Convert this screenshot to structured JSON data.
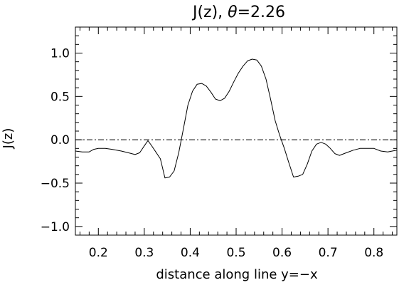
{
  "chart_data": {
    "type": "line",
    "title": {
      "prefix": "J(z),  ",
      "symbol": "θ",
      "suffix": "=2.26"
    },
    "xlabel": "distance along line y=−x",
    "ylabel": "J(z)",
    "xlim": [
      0.15,
      0.85
    ],
    "ylim": [
      -1.1,
      1.3
    ],
    "xticks": [
      0.2,
      0.3,
      0.4,
      0.5,
      0.6,
      0.7,
      0.8
    ],
    "xtick_labels": [
      "0.2",
      "0.3",
      "0.4",
      "0.5",
      "0.6",
      "0.7",
      "0.8"
    ],
    "yticks": [
      -1.0,
      -0.5,
      0.0,
      0.5,
      1.0
    ],
    "ytick_labels": [
      "−1.0",
      "−0.5",
      "0.0",
      "0.5",
      "1.0"
    ],
    "grid": false,
    "reference_line": {
      "y": 0,
      "style": "dash-dot"
    },
    "series": [
      {
        "x": [
          0.15,
          0.165,
          0.18,
          0.19,
          0.2,
          0.215,
          0.23,
          0.25,
          0.265,
          0.28,
          0.29,
          0.3,
          0.308,
          0.315,
          0.325,
          0.335,
          0.345,
          0.355,
          0.365,
          0.375,
          0.385,
          0.395,
          0.405,
          0.415,
          0.425,
          0.435,
          0.445,
          0.455,
          0.465,
          0.475,
          0.485,
          0.495,
          0.505,
          0.515,
          0.525,
          0.535,
          0.545,
          0.555,
          0.565,
          0.575,
          0.585,
          0.595,
          0.605,
          0.615,
          0.625,
          0.635,
          0.645,
          0.655,
          0.665,
          0.675,
          0.685,
          0.695,
          0.705,
          0.715,
          0.725,
          0.74,
          0.755,
          0.77,
          0.785,
          0.8,
          0.815,
          0.83,
          0.85
        ],
        "y": [
          -0.13,
          -0.14,
          -0.14,
          -0.11,
          -0.1,
          -0.1,
          -0.11,
          -0.13,
          -0.15,
          -0.17,
          -0.15,
          -0.07,
          -0.01,
          -0.06,
          -0.14,
          -0.22,
          -0.44,
          -0.43,
          -0.36,
          -0.15,
          0.12,
          0.4,
          0.56,
          0.64,
          0.65,
          0.62,
          0.55,
          0.47,
          0.45,
          0.48,
          0.56,
          0.67,
          0.77,
          0.85,
          0.91,
          0.93,
          0.92,
          0.85,
          0.7,
          0.47,
          0.22,
          0.05,
          -0.1,
          -0.27,
          -0.43,
          -0.42,
          -0.4,
          -0.28,
          -0.13,
          -0.05,
          -0.03,
          -0.05,
          -0.1,
          -0.16,
          -0.18,
          -0.15,
          -0.12,
          -0.1,
          -0.1,
          -0.1,
          -0.13,
          -0.14,
          -0.12
        ]
      }
    ]
  }
}
